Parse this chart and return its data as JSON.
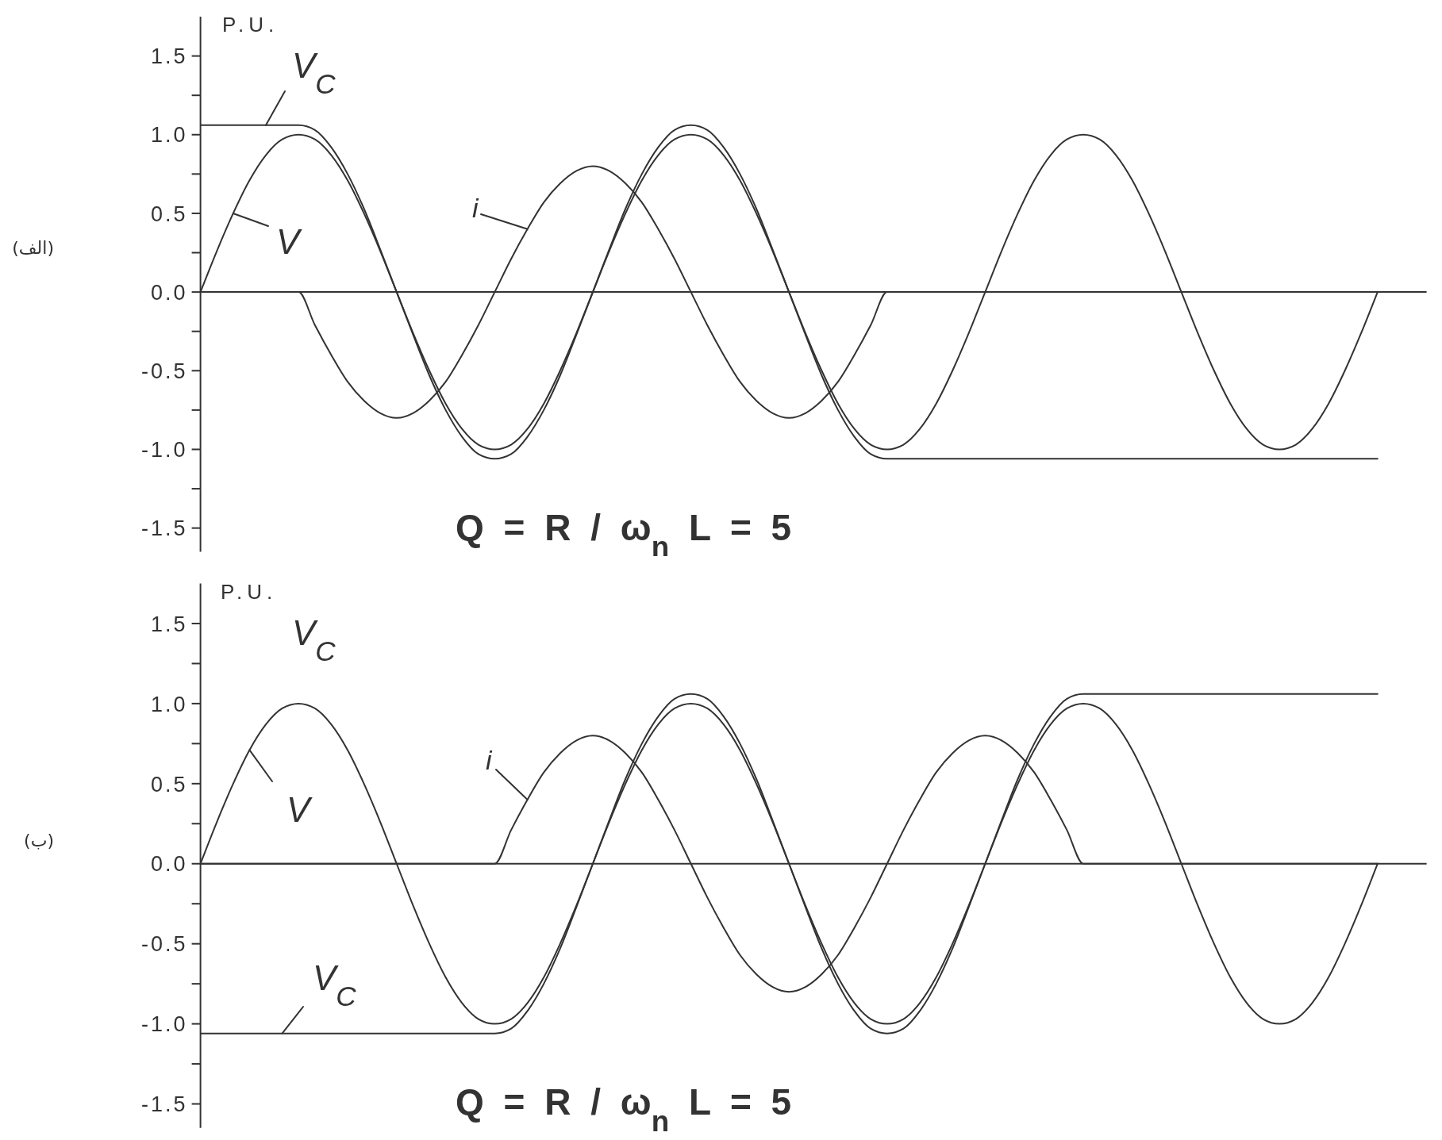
{
  "chart_data": [
    {
      "type": "line",
      "title": "(الف)",
      "ylabel": "P.U.",
      "annotations": [
        "Q = R / ω$_{n}$ L = 5"
      ],
      "categories": [
        null,
        null,
        null,
        null,
        null,
        null,
        null,
        null,
        null,
        null,
        null,
        null,
        null,
        null,
        null,
        null,
        null,
        null,
        null,
        null,
        null,
        null,
        null,
        null,
        null,
        null,
        null,
        null,
        null,
        null,
        null,
        null,
        null,
        null,
        null,
        null,
        null,
        null,
        null,
        null,
        null,
        null,
        null,
        null,
        null,
        null,
        null,
        null,
        null,
        null,
        null,
        null,
        null,
        null,
        null,
        null,
        null,
        null,
        null,
        null,
        null,
        null,
        null,
        null,
        null,
        null,
        null,
        null,
        null,
        null,
        null,
        null,
        null,
        null,
        null,
        null
      ],
      "series": [
        {
          "name": "V",
          "color": "#333333",
          "values": [
            0,
            0.26,
            0.5,
            0.71,
            0.87,
            0.97,
            1,
            0.97,
            0.87,
            0.71,
            0.5,
            0.26,
            0,
            -0.26,
            -0.5,
            -0.71,
            -0.87,
            -0.97,
            -1,
            -0.97,
            -0.87,
            -0.71,
            -0.5,
            -0.26,
            0,
            0.26,
            0.5,
            0.71,
            0.87,
            0.97,
            1,
            0.97,
            0.87,
            0.71,
            0.5,
            0.26,
            0,
            -0.26,
            -0.5,
            -0.71,
            -0.87,
            -0.97,
            -1,
            -0.97,
            -0.87,
            -0.71,
            -0.5,
            -0.26,
            0,
            0.26,
            0.5,
            0.71,
            0.87,
            0.97,
            1,
            0.97,
            0.87,
            0.71,
            0.5,
            0.26,
            0,
            -0.26,
            -0.5,
            -0.71,
            -0.87,
            -0.97,
            -1,
            -0.97,
            -0.87,
            -0.71,
            -0.5,
            -0.26,
            0,
            null,
            null,
            null
          ]
        },
        {
          "name": "V$_{C}$",
          "color": "#333333",
          "values": [
            1.06,
            1.06,
            1.06,
            1.06,
            1.06,
            1.06,
            1.06,
            1.03,
            0.92,
            0.75,
            0.53,
            0.27,
            0,
            -0.27,
            -0.53,
            -0.75,
            -0.92,
            -1.03,
            -1.06,
            -1.03,
            -0.92,
            -0.75,
            -0.53,
            -0.27,
            0,
            0.27,
            0.53,
            0.75,
            0.92,
            1.03,
            1.06,
            1.03,
            0.92,
            0.75,
            0.53,
            0.27,
            0,
            -0.27,
            -0.53,
            -0.75,
            -0.92,
            -1.03,
            -1.06,
            -1.06,
            -1.06,
            -1.06,
            -1.06,
            -1.06,
            -1.06,
            -1.06,
            -1.06,
            -1.06,
            -1.06,
            -1.06,
            -1.06,
            -1.06,
            -1.06,
            -1.06,
            -1.06,
            -1.06,
            -1.06,
            -1.06,
            -1.06,
            -1.06,
            -1.06,
            -1.06,
            -1.06,
            -1.06,
            -1.06,
            -1.06,
            -1.06,
            -1.06,
            -1.06,
            null,
            null,
            null
          ]
        },
        {
          "name": "i",
          "color": "#333333",
          "values": [
            0,
            0,
            0,
            0,
            0,
            0,
            0,
            -0.21,
            -0.4,
            -0.57,
            -0.69,
            -0.77,
            -0.8,
            -0.77,
            -0.69,
            -0.57,
            -0.4,
            -0.21,
            0,
            0.21,
            0.4,
            0.57,
            0.69,
            0.77,
            0.8,
            0.77,
            0.69,
            0.57,
            0.4,
            0.21,
            0,
            -0.21,
            -0.4,
            -0.57,
            -0.69,
            -0.77,
            -0.8,
            -0.77,
            -0.69,
            -0.57,
            -0.4,
            -0.21,
            0,
            0,
            0,
            0,
            0,
            0,
            0,
            0,
            0,
            0,
            0,
            0,
            0,
            0,
            0,
            0,
            0,
            0,
            0,
            0,
            0,
            0,
            0,
            0,
            0,
            0,
            0,
            0,
            0,
            0,
            0,
            null,
            null,
            null
          ]
        }
      ],
      "ylim": [
        -1.65,
        1.75
      ],
      "yticks": [
        -1.5,
        {
          "value": -1.25,
          "label": null
        },
        {
          "value": -1,
          "label": "-1.0"
        },
        {
          "value": -0.75,
          "label": null
        },
        -0.5,
        {
          "value": -0.25,
          "label": null
        },
        {
          "value": 0,
          "label": "0.0"
        },
        {
          "value": 0.25,
          "label": null
        },
        0.5,
        {
          "value": 0.75,
          "label": null
        },
        {
          "value": 1,
          "label": "1.0"
        },
        {
          "value": 1.25,
          "label": null
        },
        1.5
      ],
      "ref_lines": [
        {
          "axis": "y",
          "value": 0,
          "color": "#333333"
        }
      ],
      "tick_labels": "y",
      "marker": "none"
    },
    {
      "type": "line",
      "title": "(ب)",
      "ylabel": "P.U.",
      "annotations": [
        "Q = R / ω$_{n}$ L = 5",
        "V$_{C}$"
      ],
      "categories": [
        null,
        null,
        null,
        null,
        null,
        null,
        null,
        null,
        null,
        null,
        null,
        null,
        null,
        null,
        null,
        null,
        null,
        null,
        null,
        null,
        null,
        null,
        null,
        null,
        null,
        null,
        null,
        null,
        null,
        null,
        null,
        null,
        null,
        null,
        null,
        null,
        null,
        null,
        null,
        null,
        null,
        null,
        null,
        null,
        null,
        null,
        null,
        null,
        null,
        null,
        null,
        null,
        null,
        null,
        null,
        null,
        null,
        null,
        null,
        null,
        null,
        null,
        null,
        null,
        null,
        null,
        null,
        null,
        null,
        null,
        null,
        null,
        null,
        null,
        null,
        null
      ],
      "series": [
        {
          "name": "V",
          "color": "#333333",
          "values": [
            0,
            0.26,
            0.5,
            0.71,
            0.87,
            0.97,
            1,
            0.97,
            0.87,
            0.71,
            0.5,
            0.26,
            0,
            -0.26,
            -0.5,
            -0.71,
            -0.87,
            -0.97,
            -1,
            -0.97,
            -0.87,
            -0.71,
            -0.5,
            -0.26,
            0,
            0.26,
            0.5,
            0.71,
            0.87,
            0.97,
            1,
            0.97,
            0.87,
            0.71,
            0.5,
            0.26,
            0,
            -0.26,
            -0.5,
            -0.71,
            -0.87,
            -0.97,
            -1,
            -0.97,
            -0.87,
            -0.71,
            -0.5,
            -0.26,
            0,
            0.26,
            0.5,
            0.71,
            0.87,
            0.97,
            1,
            0.97,
            0.87,
            0.71,
            0.5,
            0.26,
            0,
            -0.26,
            -0.5,
            -0.71,
            -0.87,
            -0.97,
            -1,
            -0.97,
            -0.87,
            -0.71,
            -0.5,
            -0.26,
            0,
            null,
            null,
            null
          ]
        },
        {
          "name": "V$_{C}$",
          "color": "#333333",
          "values": [
            -1.06,
            -1.06,
            -1.06,
            -1.06,
            -1.06,
            -1.06,
            -1.06,
            -1.06,
            -1.06,
            -1.06,
            -1.06,
            -1.06,
            -1.06,
            -1.06,
            -1.06,
            -1.06,
            -1.06,
            -1.06,
            -1.06,
            -1.03,
            -0.92,
            -0.75,
            -0.53,
            -0.27,
            0,
            0.27,
            0.53,
            0.75,
            0.92,
            1.03,
            1.06,
            1.03,
            0.92,
            0.75,
            0.53,
            0.27,
            0,
            -0.27,
            -0.53,
            -0.75,
            -0.92,
            -1.03,
            -1.06,
            -1.03,
            -0.92,
            -0.75,
            -0.53,
            -0.27,
            0,
            0.27,
            0.53,
            0.75,
            0.92,
            1.03,
            1.06,
            1.06,
            1.06,
            1.06,
            1.06,
            1.06,
            1.06,
            1.06,
            1.06,
            1.06,
            1.06,
            1.06,
            1.06,
            1.06,
            1.06,
            1.06,
            1.06,
            1.06,
            1.06,
            null,
            null,
            null
          ]
        },
        {
          "name": "i",
          "color": "#333333",
          "values": [
            0,
            0,
            0,
            0,
            0,
            0,
            0,
            0,
            0,
            0,
            0,
            0,
            0,
            0,
            0,
            0,
            0,
            0,
            0,
            0.21,
            0.4,
            0.57,
            0.69,
            0.77,
            0.8,
            0.77,
            0.69,
            0.57,
            0.4,
            0.21,
            0,
            -0.21,
            -0.4,
            -0.57,
            -0.69,
            -0.77,
            -0.8,
            -0.77,
            -0.69,
            -0.57,
            -0.4,
            -0.21,
            0,
            0.21,
            0.4,
            0.57,
            0.69,
            0.77,
            0.8,
            0.77,
            0.69,
            0.57,
            0.4,
            0.21,
            0,
            0,
            0,
            0,
            0,
            0,
            0,
            0,
            0,
            0,
            0,
            0,
            0,
            0,
            0,
            0,
            0,
            0,
            0,
            null,
            null,
            null
          ]
        }
      ],
      "ylim": [
        -1.65,
        1.75
      ],
      "yticks": [
        -1.5,
        {
          "value": -1.25,
          "label": null
        },
        {
          "value": -1,
          "label": "-1.0"
        },
        {
          "value": -0.75,
          "label": null
        },
        -0.5,
        {
          "value": -0.25,
          "label": null
        },
        {
          "value": 0,
          "label": "0.0"
        },
        {
          "value": 0.25,
          "label": null
        },
        0.5,
        {
          "value": 0.75,
          "label": null
        },
        {
          "value": 1,
          "label": "1.0"
        },
        {
          "value": 1.25,
          "label": null
        },
        1.5
      ],
      "ref_lines": [
        {
          "axis": "y",
          "value": 0,
          "color": "#333333"
        }
      ],
      "tick_labels": "y",
      "marker": "none"
    }
  ]
}
